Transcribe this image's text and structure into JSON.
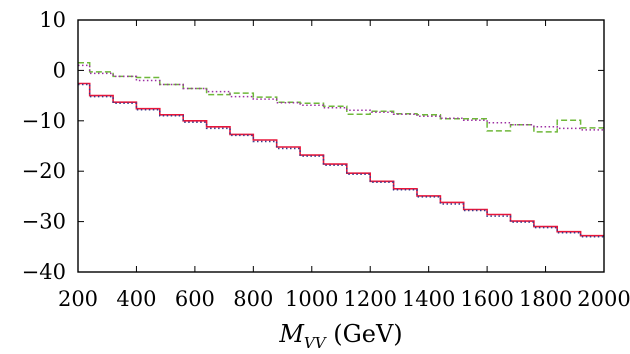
{
  "chart_data": {
    "type": "line",
    "xlabel": "M",
    "xlabel_sub": "VV",
    "xlabel_unit": " (GeV)",
    "ylabel": "",
    "xlim": [
      200,
      2000
    ],
    "ylim": [
      -40,
      10
    ],
    "xticks": [
      200,
      400,
      600,
      800,
      1000,
      1200,
      1400,
      1600,
      1800,
      2000
    ],
    "yticks": [
      -40,
      -30,
      -20,
      -10,
      0,
      10
    ],
    "legend": "none",
    "grid": false,
    "bin_edges": [
      200,
      240,
      320,
      400,
      480,
      560,
      640,
      720,
      800,
      880,
      960,
      1040,
      1120,
      1200,
      1280,
      1360,
      1440,
      1520,
      1600,
      1680,
      1760,
      1840,
      1920,
      2000
    ],
    "series": [
      {
        "color": "#e8163a",
        "style": "solid-step",
        "values": [
          -2.6,
          -5.0,
          -6.3,
          -7.6,
          -8.8,
          -10.0,
          -11.2,
          -12.7,
          -13.8,
          -15.2,
          -16.8,
          -18.6,
          -20.4,
          -22.0,
          -23.5,
          -24.9,
          -26.2,
          -27.6,
          -28.6,
          -29.9,
          -31.0,
          -32.0,
          -32.8
        ]
      },
      {
        "color": "#3a3a8c",
        "style": "dotted-step",
        "values": [
          -2.8,
          -5.2,
          -6.5,
          -7.8,
          -9.0,
          -10.3,
          -11.5,
          -12.9,
          -14.1,
          -15.5,
          -17.0,
          -18.8,
          -20.6,
          -22.2,
          -23.7,
          -25.1,
          -26.5,
          -27.8,
          -28.9,
          -30.1,
          -31.2,
          -32.2,
          -33.0
        ]
      },
      {
        "color": "#6fb83a",
        "style": "dashed-step",
        "values": [
          1.5,
          -0.3,
          -1.2,
          -1.4,
          -2.8,
          -3.6,
          -4.8,
          -4.5,
          -5.3,
          -6.3,
          -6.5,
          -7.1,
          -8.7,
          -8.1,
          -8.6,
          -8.8,
          -9.6,
          -9.6,
          -12.0,
          -10.8,
          -12.2,
          -9.9,
          -11.4
        ]
      },
      {
        "color": "#9c2fa3",
        "style": "dotted-step",
        "values": [
          1.0,
          -0.6,
          -1.2,
          -2.0,
          -2.8,
          -3.6,
          -4.2,
          -5.2,
          -5.7,
          -6.4,
          -6.9,
          -7.4,
          -7.9,
          -8.3,
          -8.7,
          -9.1,
          -9.5,
          -9.9,
          -10.4,
          -10.8,
          -11.2,
          -11.5,
          -11.8
        ]
      }
    ]
  }
}
